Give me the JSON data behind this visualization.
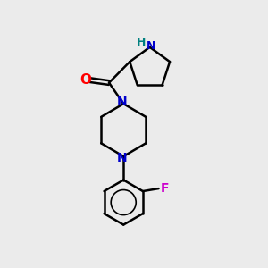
{
  "background_color": "#ebebeb",
  "bond_color": "#000000",
  "N_color": "#0000cc",
  "O_color": "#ff0000",
  "F_color": "#cc00cc",
  "H_color": "#008080",
  "line_width": 1.8,
  "figsize": [
    3.0,
    3.0
  ],
  "dpi": 100,
  "xlim": [
    0,
    10
  ],
  "ylim": [
    0,
    10
  ]
}
